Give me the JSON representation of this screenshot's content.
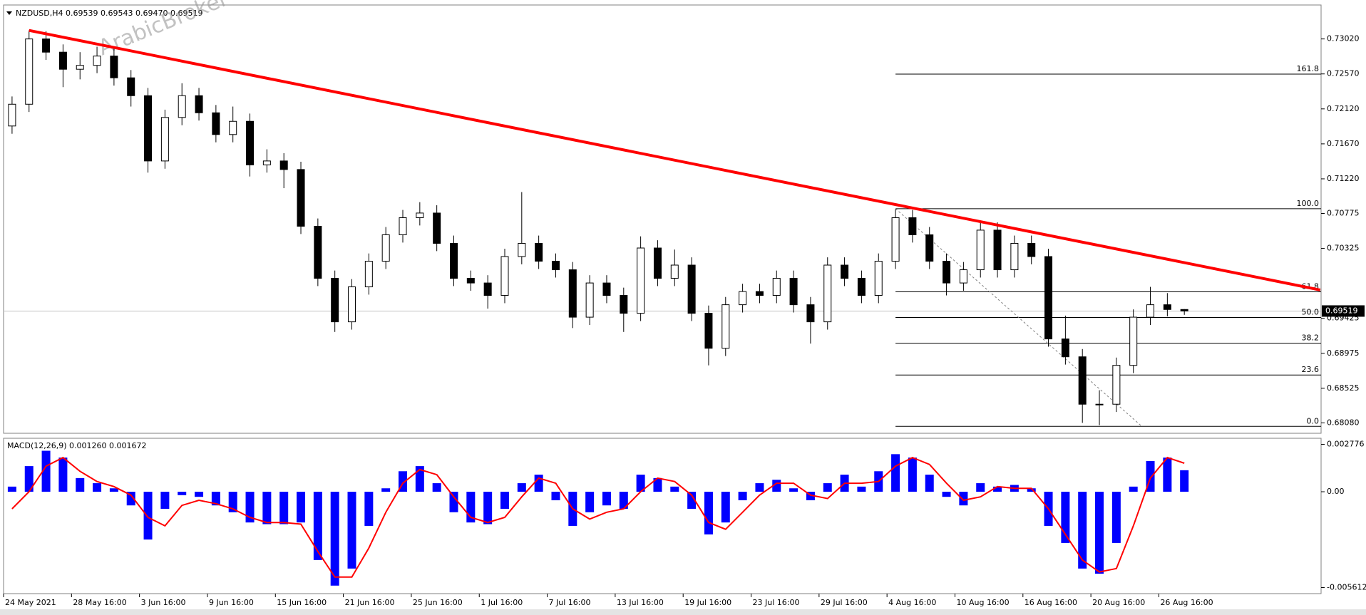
{
  "chart_data": [
    {
      "type": "candlestick",
      "title": "NZDUSD,H4",
      "subtitle": "0.69539 0.69543 0.69470 0.69519",
      "annotation": "ArabicBroker",
      "categories": [
        "24 May 2021",
        null,
        null,
        null,
        "28 May 16:00",
        null,
        null,
        null,
        "3 Jun 16:00",
        null,
        null,
        null,
        "9 Jun 16:00",
        null,
        null,
        null,
        "15 Jun 16:00",
        null,
        null,
        null,
        "21 Jun 16:00",
        null,
        null,
        null,
        "25 Jun 16:00",
        null,
        null,
        null,
        "1 Jul 16:00",
        null,
        null,
        null,
        "7 Jul 16:00",
        null,
        null,
        null,
        "13 Jul 16:00",
        null,
        null,
        null,
        "19 Jul 16:00",
        null,
        null,
        null,
        "23 Jul 16:00",
        null,
        null,
        null,
        "29 Jul 16:00",
        null,
        null,
        null,
        "4 Aug 16:00",
        null,
        null,
        null,
        "10 Aug 16:00",
        null,
        null,
        null,
        "16 Aug 16:00",
        null,
        null,
        null,
        "20 Aug 16:00",
        null,
        null,
        null,
        "26 Aug 16:00",
        null
      ],
      "open": [
        0.719,
        0.7218,
        0.7302,
        0.7285,
        0.7263,
        0.7268,
        0.728,
        0.7252,
        0.7229,
        0.7145,
        0.7201,
        0.7229,
        0.7207,
        0.7179,
        0.7196,
        0.714,
        0.7145,
        0.7134,
        0.7061,
        0.6994,
        0.6938,
        0.6983,
        0.7016,
        0.705,
        0.7072,
        0.7078,
        0.7039,
        0.6994,
        0.6988,
        0.6972,
        0.7022,
        0.7039,
        0.7016,
        0.7005,
        0.6944,
        0.6988,
        0.6972,
        0.6949,
        0.7033,
        0.6994,
        0.7011,
        0.6949,
        0.6904,
        0.696,
        0.6977,
        0.6972,
        0.6994,
        0.696,
        0.6938,
        0.7011,
        0.6994,
        0.6972,
        0.7016,
        0.7072,
        0.705,
        0.7016,
        0.6988,
        0.7005,
        0.7056,
        0.7005,
        0.7039,
        0.7022,
        0.6916,
        0.6893,
        0.6832,
        0.6832,
        0.6882,
        0.6944,
        0.696,
        0.69539
      ],
      "high": [
        0.7228,
        0.7313,
        0.7312,
        0.7295,
        0.7285,
        0.7292,
        0.729,
        0.7262,
        0.7239,
        0.7211,
        0.7245,
        0.7239,
        0.7217,
        0.7215,
        0.7206,
        0.716,
        0.7155,
        0.7144,
        0.7071,
        0.7004,
        0.6993,
        0.7026,
        0.706,
        0.7082,
        0.7092,
        0.7088,
        0.7049,
        0.7004,
        0.6998,
        0.7032,
        0.7105,
        0.7049,
        0.7026,
        0.7015,
        0.6998,
        0.6998,
        0.6982,
        0.7048,
        0.7043,
        0.7031,
        0.7021,
        0.6959,
        0.697,
        0.6987,
        0.6987,
        0.7004,
        0.7004,
        0.697,
        0.7021,
        0.7021,
        0.7004,
        0.7026,
        0.7083,
        0.7082,
        0.706,
        0.7026,
        0.7015,
        0.7066,
        0.7066,
        0.7049,
        0.7049,
        0.7032,
        0.6946,
        0.6903,
        0.685,
        0.6892,
        0.6954,
        0.6983,
        0.6975,
        0.69543
      ],
      "low": [
        0.718,
        0.7208,
        0.7275,
        0.724,
        0.725,
        0.7258,
        0.7242,
        0.7215,
        0.713,
        0.7135,
        0.7191,
        0.7197,
        0.7169,
        0.7169,
        0.7125,
        0.713,
        0.711,
        0.7051,
        0.6984,
        0.6925,
        0.6928,
        0.6973,
        0.7006,
        0.704,
        0.7062,
        0.7029,
        0.6984,
        0.6978,
        0.6955,
        0.6962,
        0.7012,
        0.7006,
        0.6995,
        0.693,
        0.6934,
        0.6962,
        0.6925,
        0.6939,
        0.6984,
        0.6984,
        0.6939,
        0.6882,
        0.6894,
        0.695,
        0.6962,
        0.6962,
        0.695,
        0.691,
        0.6928,
        0.6984,
        0.6962,
        0.6962,
        0.7006,
        0.704,
        0.7006,
        0.6972,
        0.6978,
        0.6995,
        0.6995,
        0.6995,
        0.7012,
        0.6906,
        0.6883,
        0.6808,
        0.6805,
        0.6822,
        0.6872,
        0.6934,
        0.6945,
        0.6947
      ],
      "close": [
        0.7218,
        0.7302,
        0.7285,
        0.7263,
        0.7268,
        0.728,
        0.7252,
        0.7229,
        0.7145,
        0.7201,
        0.7229,
        0.7207,
        0.7179,
        0.7196,
        0.714,
        0.7145,
        0.7134,
        0.7061,
        0.6994,
        0.6938,
        0.6983,
        0.7016,
        0.705,
        0.7072,
        0.7078,
        0.7039,
        0.6994,
        0.6988,
        0.6972,
        0.7022,
        0.7039,
        0.7016,
        0.7005,
        0.6944,
        0.6988,
        0.6972,
        0.6949,
        0.7033,
        0.6994,
        0.7011,
        0.6949,
        0.6904,
        0.696,
        0.6977,
        0.6972,
        0.6994,
        0.696,
        0.6938,
        0.7011,
        0.6994,
        0.6972,
        0.7016,
        0.7072,
        0.705,
        0.7016,
        0.6988,
        0.7005,
        0.7056,
        0.7005,
        0.7039,
        0.7022,
        0.6916,
        0.6893,
        0.6832,
        0.6832,
        0.6882,
        0.6944,
        0.696,
        0.69539,
        0.69519
      ],
      "up_color": "#ffffff",
      "down_color": "#000000",
      "ylim": [
        0.67946,
        0.73457
      ],
      "yticks": [
        {
          "value": 0.7302,
          "label": "0.73020"
        },
        {
          "value": 0.7257,
          "label": "0.72570"
        },
        {
          "value": 0.7212,
          "label": "0.72120"
        },
        {
          "value": 0.7167,
          "label": "0.71670"
        },
        {
          "value": 0.7122,
          "label": "0.71220"
        },
        {
          "value": 0.70775,
          "label": "0.70775"
        },
        {
          "value": 0.70325,
          "label": "0.70325"
        },
        {
          "value": 0.69425,
          "label": "0.69425"
        },
        {
          "value": 0.68975,
          "label": "0.68975"
        },
        {
          "value": 0.68525,
          "label": "0.68525"
        },
        {
          "value": 0.6808,
          "label": "0.68080"
        }
      ],
      "price_line": {
        "value": 0.69519,
        "label": "0.69519"
      },
      "trendline": {
        "color": "#ff0000",
        "x": [
          1,
          77
        ],
        "y": [
          0.7313,
          0.6979
        ]
      },
      "fibonacci": {
        "anchor_x": [
          52,
          66.5
        ],
        "levels": [
          {
            "label": "0.0",
            "value": 0.68035
          },
          {
            "label": "23.6",
            "value": 0.68696
          },
          {
            "label": "38.2",
            "value": 0.69105
          },
          {
            "label": "50.0",
            "value": 0.69436
          },
          {
            "label": "61.8",
            "value": 0.69766
          },
          {
            "label": "100.0",
            "value": 0.70836
          },
          {
            "label": "161.8",
            "value": 0.72567
          }
        ]
      }
    },
    {
      "type": "macd",
      "title": "MACD(12,26,9) 0.001260 0.001672",
      "series": [
        {
          "color": "#0000ff",
          "values": [
            0.0003,
            0.0015,
            0.0024,
            0.002,
            0.0008,
            0.0005,
            0.0002,
            -0.0008,
            -0.0028,
            -0.001,
            -0.0002,
            -0.0003,
            -0.0008,
            -0.0012,
            -0.0018,
            -0.0019,
            -0.0019,
            -0.0018,
            -0.004,
            -0.0055,
            -0.0045,
            -0.002,
            0.0002,
            0.0012,
            0.0015,
            0.0005,
            -0.0012,
            -0.0018,
            -0.0019,
            -0.001,
            0.0005,
            0.001,
            -0.0005,
            -0.002,
            -0.0012,
            -0.0008,
            -0.001,
            0.001,
            0.0008,
            0.0003,
            -0.001,
            -0.0025,
            -0.0018,
            -0.0005,
            0.0005,
            0.0007,
            0.0002,
            -0.0005,
            0.0005,
            0.001,
            0.0003,
            0.0012,
            0.0022,
            0.002,
            0.001,
            -0.0003,
            -0.0008,
            0.0005,
            0.0003,
            0.0004,
            0.0002,
            -0.002,
            -0.003,
            -0.0045,
            -0.0048,
            -0.003,
            0.0003,
            0.0018,
            0.002,
            0.00126
          ]
        },
        {
          "color": "#ff0000",
          "values": [
            -0.001,
            0.0,
            0.0015,
            0.002,
            0.0012,
            0.0006,
            0.0003,
            -0.0002,
            -0.0015,
            -0.002,
            -0.0008,
            -0.0005,
            -0.0007,
            -0.001,
            -0.0015,
            -0.0018,
            -0.0018,
            -0.0019,
            -0.0035,
            -0.005,
            -0.005,
            -0.0033,
            -0.0012,
            0.0005,
            0.0013,
            0.001,
            -0.0003,
            -0.0015,
            -0.0018,
            -0.0015,
            -0.0003,
            0.0008,
            0.0005,
            -0.001,
            -0.0016,
            -0.0012,
            -0.001,
            0.0,
            0.0008,
            0.0006,
            -0.0002,
            -0.0018,
            -0.0022,
            -0.0012,
            -0.0002,
            0.0005,
            0.0005,
            -0.0002,
            -0.0004,
            0.0005,
            0.0005,
            0.0006,
            0.0015,
            0.002,
            0.0016,
            0.0005,
            -0.0005,
            -0.0003,
            0.0003,
            0.0002,
            0.0002,
            -0.001,
            -0.0025,
            -0.004,
            -0.0047,
            -0.0045,
            -0.002,
            0.0008,
            0.002,
            0.001672
          ]
        }
      ],
      "ylim": [
        -0.005968,
        0.003132
      ],
      "yticks": [
        {
          "value": 0.002776,
          "label": "0.002776"
        },
        {
          "value": 0,
          "label": "0.00"
        },
        {
          "value": -0.005612,
          "label": "-0.005612"
        }
      ]
    }
  ]
}
